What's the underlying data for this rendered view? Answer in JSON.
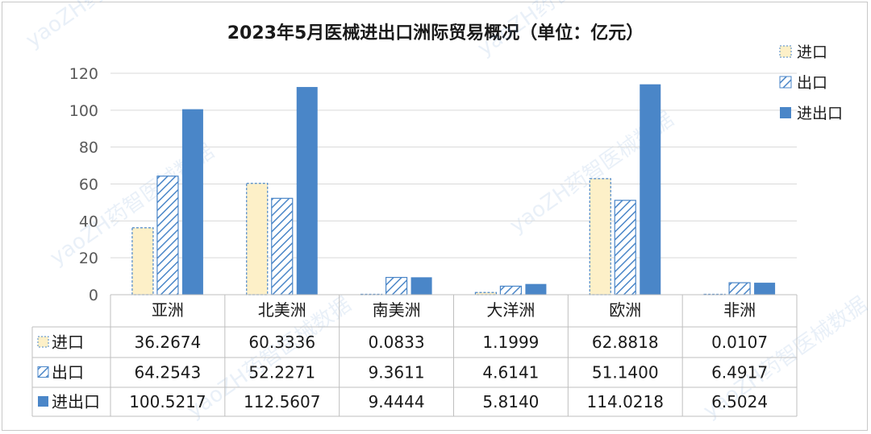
{
  "chart_data": {
    "type": "bar",
    "title": "2023年5月医械进出口洲际贸易概况（单位：亿元）",
    "categories": [
      "亚洲",
      "北美洲",
      "南美洲",
      "大洋洲",
      "欧洲",
      "非洲"
    ],
    "series": [
      {
        "name": "进口",
        "values": [
          36.2674,
          60.3336,
          0.0833,
          1.1999,
          62.8818,
          0.0107
        ],
        "value_labels": [
          "36.2674",
          "60.3336",
          "0.0833",
          "1.1999",
          "62.8818",
          "0.0107"
        ],
        "color": "#fdf0c8",
        "stroke": "#4a86c8",
        "style": "dashed"
      },
      {
        "name": "出口",
        "values": [
          64.2543,
          52.2271,
          9.3611,
          4.6141,
          51.14,
          6.4917
        ],
        "value_labels": [
          "64.2543",
          "52.2271",
          "9.3611",
          "4.6141",
          "51.1400",
          "6.4917"
        ],
        "color": "#4a86c8",
        "stroke": "#4a86c8",
        "style": "hatched"
      },
      {
        "name": "进出口",
        "values": [
          100.5217,
          112.5607,
          9.4444,
          5.814,
          114.0218,
          6.5024
        ],
        "value_labels": [
          "100.5217",
          "112.5607",
          "9.4444",
          "5.8140",
          "114.0218",
          "6.5024"
        ],
        "color": "#4a86c8",
        "stroke": "#4a86c8",
        "style": "solid"
      }
    ],
    "ylim": [
      0,
      120
    ],
    "yticks": [
      "0",
      "20",
      "40",
      "60",
      "80",
      "100",
      "120"
    ],
    "grid": true,
    "legend_position": "top-right",
    "data_table": true,
    "watermark": "yaoZH药智医械数据"
  }
}
